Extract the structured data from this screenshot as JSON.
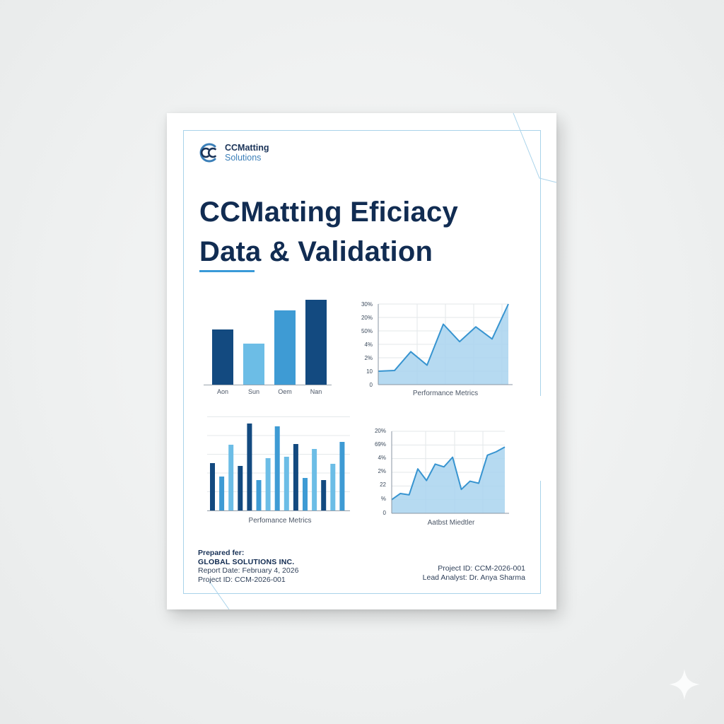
{
  "brand": {
    "name": "CCMatting",
    "subtitle": "Solutions",
    "icon": "cc-logo-icon",
    "colors": {
      "navy": "#112c52",
      "dark_blue": "#134a80",
      "mid_blue": "#3e9bd4",
      "light_blue": "#6cbde6",
      "frame": "#a9d3ea"
    }
  },
  "title": {
    "line1": "CCMatting Eficiacy",
    "line2": "Data & Validation"
  },
  "chart_data": [
    {
      "type": "bar",
      "title": "",
      "categories": [
        "Aon",
        "Sun",
        "Oem",
        "Nan"
      ],
      "values": [
        78,
        58,
        105,
        120
      ],
      "colors": [
        "#134a80",
        "#6cbde6",
        "#3e9bd4",
        "#134a80"
      ],
      "xlabel": "",
      "ylabel": "",
      "grid": false
    },
    {
      "type": "area",
      "title": "",
      "xlabel": "Performance Metrics",
      "ylabel": "",
      "y_tick_labels": [
        "0",
        "10",
        "2%",
        "4%",
        "50%",
        "20%",
        "30%"
      ],
      "x": [
        0,
        1,
        2,
        3,
        4,
        5,
        6,
        7,
        8
      ],
      "values": [
        1.0,
        1.05,
        2.45,
        1.45,
        4.5,
        3.2,
        4.3,
        3.4,
        6.0
      ],
      "grid": true
    },
    {
      "type": "bar",
      "title": "",
      "xlabel": "Perfomance Metrics",
      "ylabel": "",
      "categories": [
        "1",
        "2",
        "3",
        "4",
        "5",
        "6",
        "7",
        "8",
        "9",
        "10",
        "11",
        "12",
        "13",
        "14",
        "15"
      ],
      "values": [
        67,
        48,
        93,
        63,
        123,
        43,
        74,
        119,
        76,
        94,
        46,
        87,
        43,
        66,
        97
      ],
      "colors": [
        "#134a80",
        "#3e9bd4",
        "#6cbde6",
        "#134a80",
        "#134a80",
        "#3e9bd4",
        "#6cbde6",
        "#3e9bd4",
        "#6cbde6",
        "#134a80",
        "#3e9bd4",
        "#6cbde6",
        "#134a80",
        "#6cbde6",
        "#3e9bd4"
      ],
      "grid": true
    },
    {
      "type": "area",
      "title": "",
      "xlabel": "Aatbst Miedtler",
      "ylabel": "",
      "y_tick_labels": [
        "0",
        "%",
        "22",
        "2%",
        "4%",
        "69%",
        "20%"
      ],
      "x": [
        0,
        1,
        2,
        3,
        4,
        5,
        6,
        7,
        8,
        9,
        10,
        11,
        12,
        13
      ],
      "values": [
        1.0,
        1.45,
        1.35,
        3.25,
        2.4,
        3.6,
        3.4,
        4.1,
        1.75,
        2.35,
        2.2,
        4.25,
        4.5,
        4.85
      ],
      "grid": true
    }
  ],
  "footer": {
    "prepared_label": "Prepared fer:",
    "client": "GLOBAL SOLUTIONS INC.",
    "report_date": "Report Date: February 4, 2026",
    "project_id_left": "Project ID: CCM-2026-001",
    "project_id_right": "Project ID: CCM-2026-001",
    "lead_analyst": "Lead Analyst: Dr. Anya Sharma"
  },
  "watermark": {
    "icon": "sparkle-icon"
  }
}
